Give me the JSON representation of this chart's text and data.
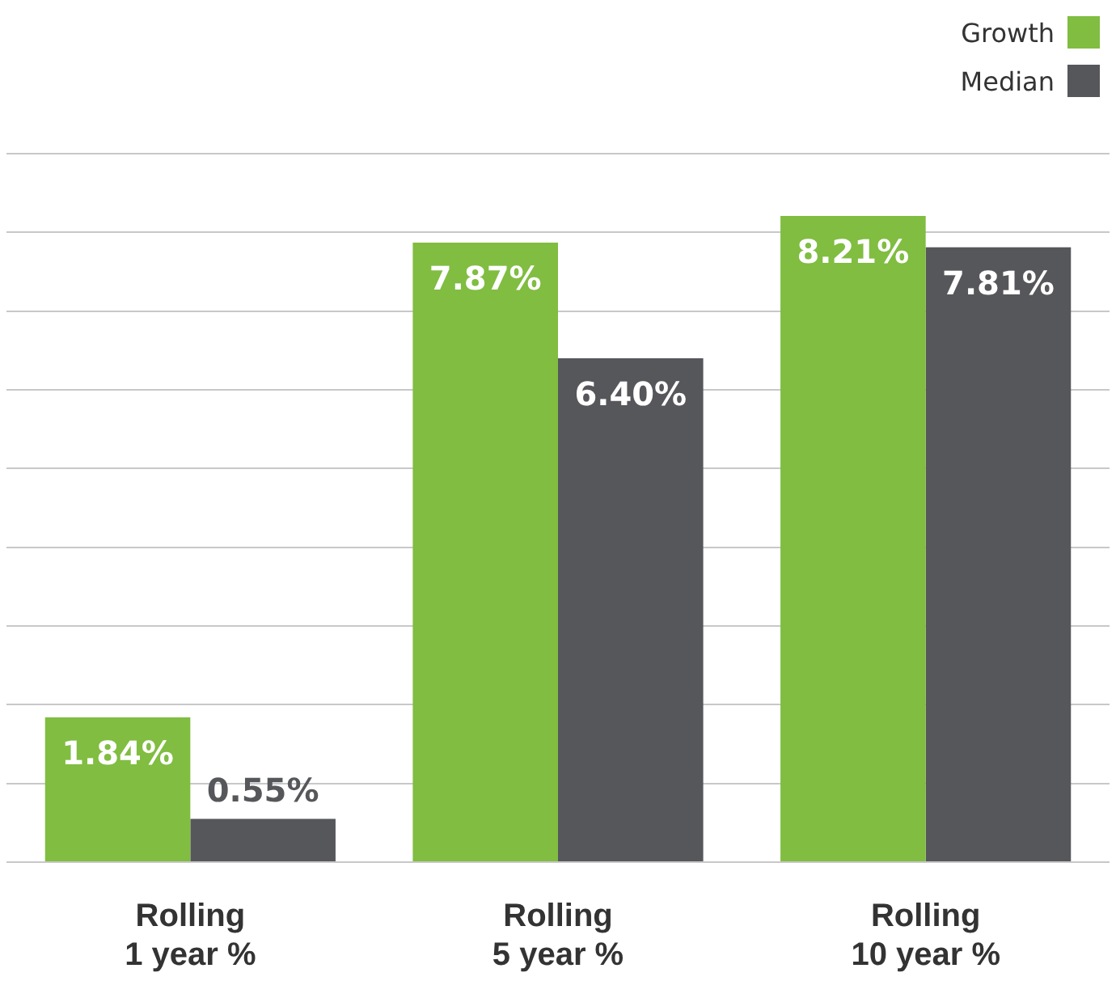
{
  "chart_data": {
    "type": "bar",
    "categories": [
      "Rolling 1 year %",
      "Rolling 5 year %",
      "Rolling 10 year %"
    ],
    "series": [
      {
        "name": "Growth",
        "color": "#80bd41",
        "values": [
          1.84,
          7.87,
          8.21
        ],
        "value_labels": [
          "1.84%",
          "7.87%",
          "8.21%"
        ]
      },
      {
        "name": "Median",
        "color": "#56575b",
        "values": [
          0.55,
          6.4,
          7.81
        ],
        "value_labels": [
          "0.55%",
          "6.40%",
          "7.81%"
        ]
      }
    ],
    "grid": "y",
    "legend": "top right",
    "tick_labels": "x"
  }
}
